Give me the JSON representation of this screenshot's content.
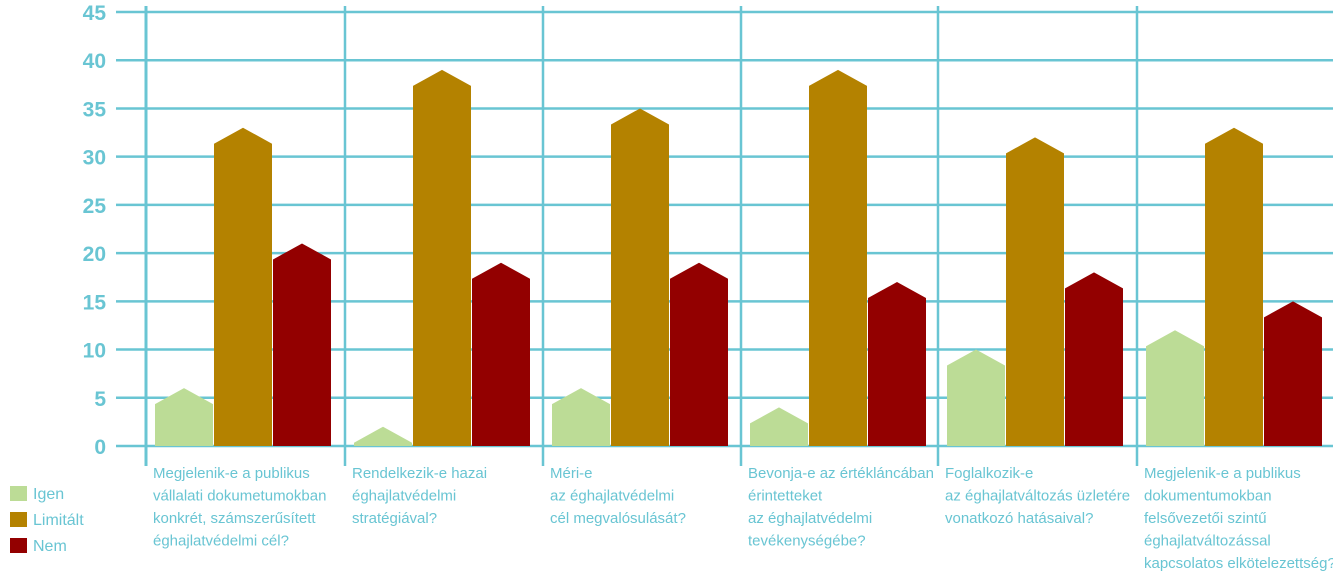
{
  "chart_data": {
    "type": "bar",
    "ylim": [
      0,
      45
    ],
    "yticks": [
      0,
      5,
      10,
      15,
      20,
      25,
      30,
      35,
      40,
      45
    ],
    "grid": true,
    "legend_position": "bottom-left",
    "categories": [
      [
        "Megjelenik-e a publikus",
        "vállalati dokumetumokban",
        "konkrét, számszerűsített",
        "éghajlatvédelmi cél?"
      ],
      [
        "Rendelkezik-e hazai",
        "éghajlatvédelmi",
        "stratégiával?"
      ],
      [
        "Méri-e",
        "az éghajlatvédelmi",
        "cél megvalósulását?"
      ],
      [
        "Bevonja-e az értékláncában",
        "érintetteket",
        "az éghajlatvédelmi",
        "tevékenységébe?"
      ],
      [
        "Foglalkozik-e",
        "az éghajlatváltozás üzletére",
        "vonatkozó hatásaival?"
      ],
      [
        "Megjelenik-e a publikus",
        "dokumentumokban",
        "felsővezetői szintű",
        "éghajlatváltozással",
        "kapcsolatos elkötelezettség?"
      ]
    ],
    "series": [
      {
        "name": "Igen",
        "color": "#bcdc96",
        "values": [
          6,
          2,
          6,
          4,
          10,
          12
        ]
      },
      {
        "name": "Limitált",
        "color": "#b48200",
        "values": [
          33,
          39,
          35,
          39,
          32,
          33
        ]
      },
      {
        "name": "Nem",
        "color": "#930000",
        "values": [
          21,
          19,
          19,
          17,
          18,
          15
        ]
      }
    ]
  },
  "colors": {
    "grid": "#69c5d3",
    "text": "#69c5d3"
  }
}
